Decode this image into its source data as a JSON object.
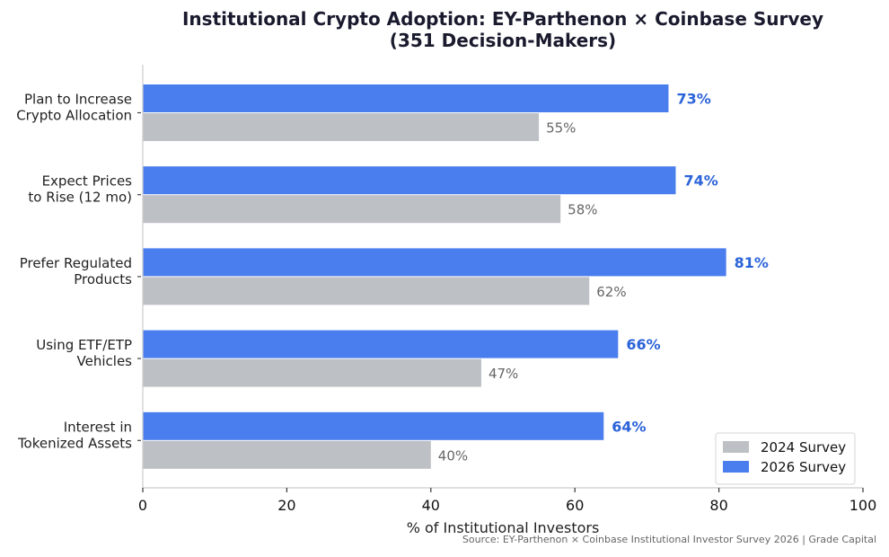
{
  "chart_data": {
    "type": "bar",
    "orientation": "horizontal",
    "title": "Institutional Crypto Adoption: EY-Parthenon × Coinbase Survey",
    "subtitle": "(351 Decision-Makers)",
    "xlabel": "% of Institutional Investors",
    "ylabel": "",
    "xlim": [
      0,
      100
    ],
    "xticks": [
      0,
      20,
      40,
      60,
      80,
      100
    ],
    "categories": [
      [
        "Plan to Increase",
        "Crypto Allocation"
      ],
      [
        "Expect Prices",
        "to Rise (12 mo)"
      ],
      [
        "Prefer Regulated",
        "Products"
      ],
      [
        "Using ETF/ETP",
        "Vehicles"
      ],
      [
        "Interest in",
        "Tokenized Assets"
      ]
    ],
    "series": [
      {
        "name": "2026 Survey",
        "color": "#4a7ded",
        "label_color": "#2b63d9",
        "values": [
          73,
          74,
          81,
          66,
          64
        ],
        "labels": [
          "73%",
          "74%",
          "81%",
          "66%",
          "64%"
        ]
      },
      {
        "name": "2024 Survey",
        "color": "#bdc0c5",
        "label_color": "#666666",
        "values": [
          55,
          58,
          62,
          47,
          40
        ],
        "labels": [
          "55%",
          "58%",
          "62%",
          "47%",
          "40%"
        ]
      }
    ],
    "legend": {
      "placement": "bottom-right",
      "order": [
        "2024 Survey",
        "2026 Survey"
      ]
    },
    "grid": false,
    "source": "Source: EY-Parthenon × Coinbase Institutional Investor Survey 2026 | Grade Capital"
  }
}
